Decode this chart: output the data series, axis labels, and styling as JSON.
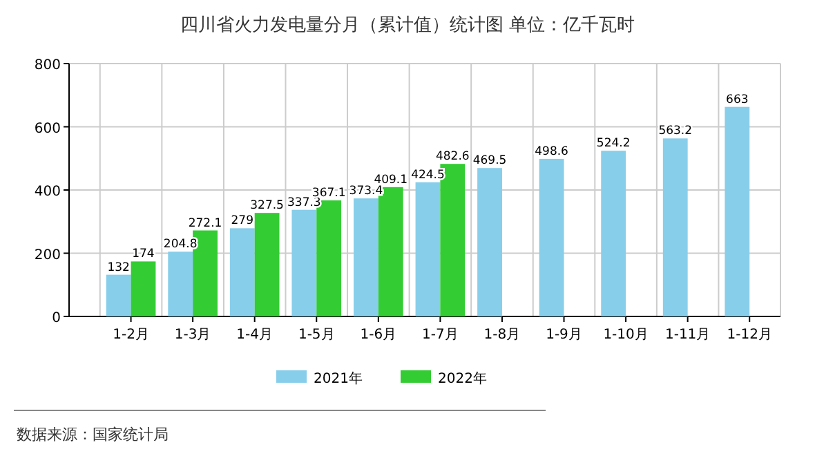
{
  "chart_data": {
    "type": "bar",
    "title": "四川省火力发电量分月（累计值）统计图 单位：亿千瓦时",
    "categories": [
      "1-2月",
      "1-3月",
      "1-4月",
      "1-5月",
      "1-6月",
      "1-7月",
      "1-8月",
      "1-9月",
      "1-10月",
      "1-11月",
      "1-12月"
    ],
    "series": [
      {
        "name": "2021年",
        "color": "#87ceeb",
        "values": [
          132,
          204.8,
          279,
          337.3,
          373.4,
          424.5,
          469.5,
          498.6,
          524.2,
          563.2,
          663
        ]
      },
      {
        "name": "2022年",
        "color": "#33cc33",
        "values": [
          174,
          272.1,
          327.5,
          367.1,
          409.1,
          482.6,
          null,
          null,
          null,
          null,
          null
        ]
      }
    ],
    "ylim": [
      0,
      800
    ],
    "yticks": [
      0,
      200,
      400,
      600,
      800
    ],
    "grid": true,
    "legend": "bottom",
    "data_labels": true,
    "annotations": [
      "数据来源：国家统计局"
    ]
  }
}
